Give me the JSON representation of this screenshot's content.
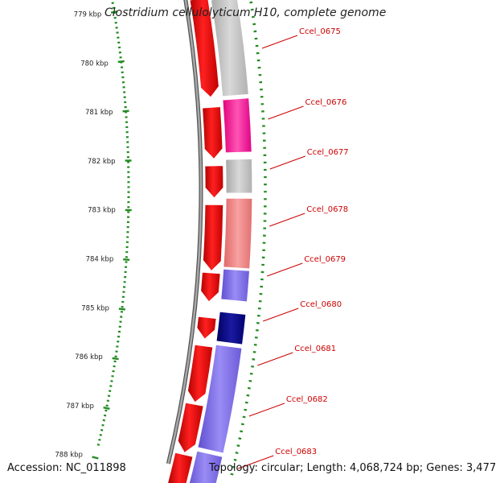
{
  "title": "Clostridium cellulolyticum H10, complete genome",
  "footer": {
    "accession": "Accession: NC_011898",
    "topology": "Topology: circular;",
    "length": "Length: 4,068,724 bp;",
    "genes": "Genes: 3,477"
  },
  "ruler": {
    "unit": "kbp",
    "ticks": [
      "779 kbp",
      "780 kbp",
      "781 kbp",
      "782 kbp",
      "783 kbp",
      "784 kbp",
      "785 kbp",
      "786 kbp",
      "787 kbp",
      "788 kbp"
    ]
  },
  "gene_labels": [
    "Ccel_0675",
    "Ccel_0676",
    "Ccel_0677",
    "Ccel_0678",
    "Ccel_0679",
    "Ccel_0680",
    "Ccel_0681",
    "Ccel_0682",
    "Ccel_0683"
  ],
  "colors": {
    "cds": "#ff0000",
    "label": "#cc0000",
    "tick": "#228b22",
    "backbone": "#888888",
    "gray": "#c0c0c0",
    "magenta": "#ff2aa0",
    "salmon": "#f08080",
    "periwinkle": "#7b68ee",
    "navy": "#000080"
  }
}
